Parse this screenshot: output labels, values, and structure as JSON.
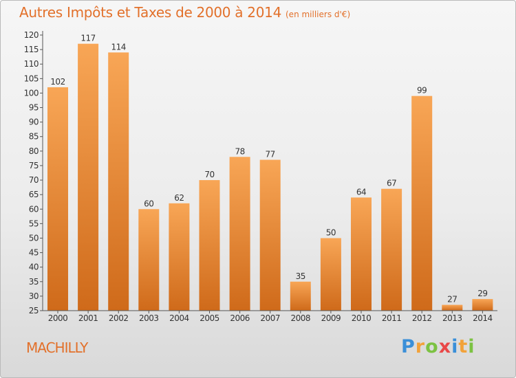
{
  "header": {
    "title": "Autres Impôts et Taxes de 2000 à 2014",
    "unit": "(en milliers d'€)"
  },
  "commune": "MACHILLY",
  "brand": {
    "letters": [
      "P",
      "r",
      "o",
      "x",
      "i",
      "t",
      "i"
    ],
    "colors": [
      "#3a8fd8",
      "#f2a23a",
      "#7cc242",
      "#e94848",
      "#3a8fd8",
      "#f2a23a",
      "#7cc242"
    ]
  },
  "colors": {
    "bar_light": "#f8a656",
    "bar_dark": "#cf6a1a",
    "title": "#e2702a"
  },
  "chart_data": {
    "type": "bar",
    "categories": [
      "2000",
      "2001",
      "2002",
      "2003",
      "2004",
      "2005",
      "2006",
      "2007",
      "2008",
      "2009",
      "2010",
      "2011",
      "2012",
      "2013",
      "2014"
    ],
    "values": [
      102,
      117,
      114,
      60,
      62,
      70,
      78,
      77,
      35,
      50,
      64,
      67,
      99,
      27,
      29
    ],
    "title": "Autres Impôts et Taxes de 2000 à 2014",
    "subtitle": "(en milliers d'€)",
    "xlabel": "",
    "ylabel": "",
    "ylim": [
      25,
      120
    ],
    "yticks": [
      25,
      30,
      35,
      40,
      45,
      50,
      55,
      60,
      65,
      70,
      75,
      80,
      85,
      90,
      95,
      100,
      105,
      110,
      115,
      120
    ],
    "grid": false,
    "data_labels": true
  }
}
